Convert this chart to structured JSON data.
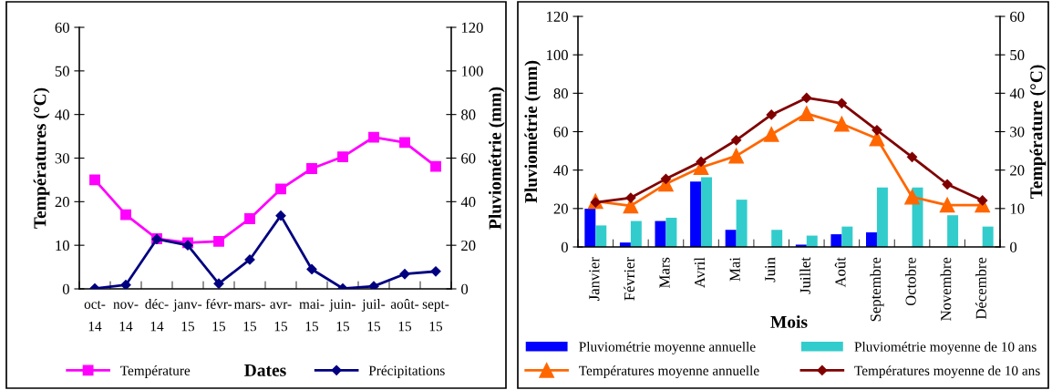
{
  "chart_data": [
    {
      "type": "line",
      "xlabel": "Dates",
      "ylabel": "Températures (°C)",
      "y2label": "Pluviométrie (mm)",
      "categories": [
        "oct-\n14",
        "nov-\n14",
        "déc-\n14",
        "janv-\n15",
        "févr-\n15",
        "mars-\n15",
        "avr-\n15",
        "mai-\n15",
        "juin-\n15",
        "juil-\n15",
        "août-\n15",
        "sept-\n15"
      ],
      "series": [
        {
          "name": "Température",
          "color": "#ff00ff",
          "marker": "square",
          "values": [
            25,
            17,
            11.5,
            10.6,
            10.9,
            16.1,
            22.9,
            27.6,
            30.3,
            34.8,
            33.6,
            28.1
          ]
        },
        {
          "name": "Précipitations",
          "color": "#000080",
          "marker": "diamond",
          "axis": "y2",
          "values": [
            0.2,
            1.8,
            22.8,
            20,
            2.4,
            13.4,
            33.6,
            9,
            0.2,
            1.2,
            6.8,
            8
          ]
        }
      ],
      "ylim": [
        0,
        60
      ],
      "yticks": [
        0,
        10,
        20,
        30,
        40,
        50,
        60
      ],
      "y2lim": [
        0,
        120
      ],
      "y2ticks": [
        0,
        20,
        40,
        60,
        80,
        100,
        120
      ],
      "grid": false,
      "legend": "bottom"
    },
    {
      "type": "bar",
      "xlabel": "Mois",
      "ylabel": "Pluviométrie (mm)",
      "y2label": "Température (°C)",
      "categories": [
        "Janvier",
        "Février",
        "Mars",
        "Avril",
        "Mai",
        "Juin",
        "Juillet",
        "Août",
        "Septembre",
        "Octobre",
        "Novembre",
        "Décembre"
      ],
      "series": [
        {
          "name": "Pluviométrie moyenne annuelle",
          "color": "#0000ff",
          "values": [
            19.9,
            2.3,
            13.5,
            34,
            8.9,
            null,
            1.2,
            6.6,
            7.6,
            null,
            null,
            null
          ]
        },
        {
          "name": "Pluviométrie moyenne de 10 ans",
          "color": "#33cccc",
          "values": [
            11.2,
            13.5,
            15.2,
            36.3,
            24.6,
            8.9,
            5.9,
            10.6,
            31,
            31,
            16.5,
            10.6
          ]
        },
        {
          "name": "Températures moyenne annuelle",
          "type": "line",
          "axis": "y2",
          "marker": "triangle",
          "color": "#ff6600",
          "values": [
            11.9,
            10.7,
            16.4,
            20.7,
            23.7,
            29.3,
            34.7,
            32,
            28.2,
            13,
            10.9,
            10.9
          ]
        },
        {
          "name": "Températures moyenne de 10 ans",
          "type": "line",
          "axis": "y2",
          "marker": "diamond",
          "color": "#800000",
          "values": [
            11.6,
            12.8,
            17.7,
            22.2,
            27.8,
            34.4,
            38.8,
            37.4,
            30.4,
            23.4,
            16.3,
            12.1
          ]
        }
      ],
      "ylim": [
        0,
        120
      ],
      "yticks": [
        0,
        20,
        40,
        60,
        80,
        100,
        120
      ],
      "y2lim": [
        0,
        60
      ],
      "y2ticks": [
        0,
        10,
        20,
        30,
        40,
        50,
        60
      ],
      "grid": false,
      "legend": "bottom"
    }
  ]
}
